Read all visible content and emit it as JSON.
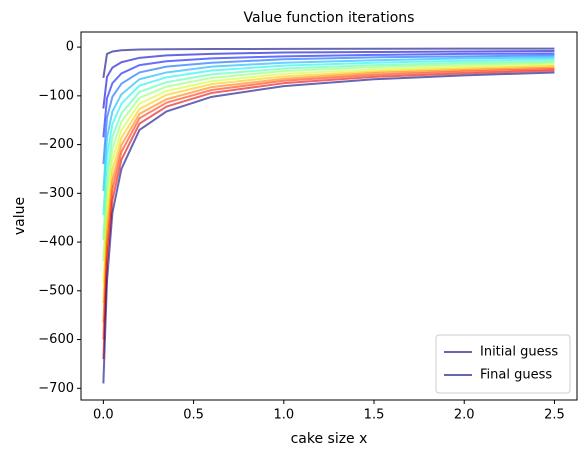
{
  "chart_data": {
    "type": "line",
    "title": "Value function iterations",
    "xlabel": "cake size x",
    "ylabel": "value",
    "x": [
      0,
      0.02,
      0.05,
      0.1,
      0.2,
      0.35,
      0.6,
      1.0,
      1.5,
      2.0,
      2.5
    ],
    "xlim": [
      -0.124,
      2.625
    ],
    "xticks": [
      {
        "value": 0,
        "label": "0.0"
      },
      0.5,
      {
        "value": 1,
        "label": "1.0"
      },
      1.5,
      {
        "value": 2,
        "label": "2.0"
      },
      2.5
    ],
    "ylim": [
      -724,
      31
    ],
    "yticks": [
      0,
      {
        "value": -100,
        "label": "−100"
      },
      {
        "value": -200,
        "label": "−200"
      },
      {
        "value": -300,
        "label": "−300"
      },
      {
        "value": -400,
        "label": "−400"
      },
      {
        "value": -500,
        "label": "−500"
      },
      {
        "value": -600,
        "label": "−600"
      },
      {
        "value": -700,
        "label": "−700"
      }
    ],
    "grid": false,
    "legend": "lower right",
    "series": [
      {
        "name": "Initial guess",
        "color": "#000080",
        "values": [
          -63,
          -14,
          -9,
          -6.5,
          -5,
          -4.5,
          -4,
          -3.6,
          -3.3,
          -3.1,
          -3
        ]
      },
      {
        "color": "#0000d0",
        "values": [
          -126,
          -61,
          -42,
          -31,
          -22,
          -17,
          -14,
          -11,
          -10,
          -9,
          -8
        ]
      },
      {
        "color": "#0010ff",
        "values": [
          -185,
          -105,
          -74,
          -54,
          -37,
          -29,
          -23,
          -19,
          -16,
          -14,
          -13
        ]
      },
      {
        "color": "#0060ff",
        "values": [
          -240,
          -145,
          -102,
          -75,
          -52,
          -40,
          -32,
          -25,
          -21,
          -19,
          -17
        ]
      },
      {
        "color": "#00b0ff",
        "values": [
          -295,
          -186,
          -132,
          -97,
          -66,
          -52,
          -40,
          -32,
          -27,
          -23,
          -21
        ]
      },
      {
        "color": "#0cf4eb",
        "values": [
          -345,
          -224,
          -158,
          -116,
          -79,
          -62,
          -48,
          -38,
          -32,
          -28,
          -25
        ]
      },
      {
        "color": "#4dffaa",
        "values": [
          -395,
          -261,
          -184,
          -136,
          -92,
          -72,
          -56,
          -44,
          -37,
          -32,
          -29
        ]
      },
      {
        "color": "#8dff6a",
        "values": [
          -439,
          -294,
          -208,
          -153,
          -104,
          -81,
          -63,
          -49,
          -41,
          -36,
          -32
        ]
      },
      {
        "color": "#cdff2a",
        "values": [
          -485,
          -328,
          -232,
          -170,
          -116,
          -90,
          -70,
          -55,
          -46,
          -40,
          -36
        ]
      },
      {
        "color": "#ffc400",
        "values": [
          -525,
          -357,
          -253,
          -186,
          -127,
          -98,
          -76,
          -60,
          -50,
          -44,
          -39
        ]
      },
      {
        "color": "#ff7a00",
        "values": [
          -565,
          -387,
          -274,
          -201,
          -137,
          -107,
          -82,
          -65,
          -53,
          -47,
          -42
        ]
      },
      {
        "color": "#ff3000",
        "values": [
          -600,
          -413,
          -292,
          -215,
          -146,
          -114,
          -88,
          -69,
          -57,
          -50,
          -45
        ]
      },
      {
        "color": "#e40000",
        "values": [
          -640,
          -443,
          -314,
          -231,
          -157,
          -122,
          -94,
          -74,
          -61,
          -54,
          -48
        ]
      },
      {
        "name": "Final guess",
        "color": "#000080",
        "values": [
          -690,
          -480,
          -340,
          -250,
          -170,
          -132,
          -102,
          -80,
          -66,
          -58,
          -52
        ]
      }
    ]
  }
}
